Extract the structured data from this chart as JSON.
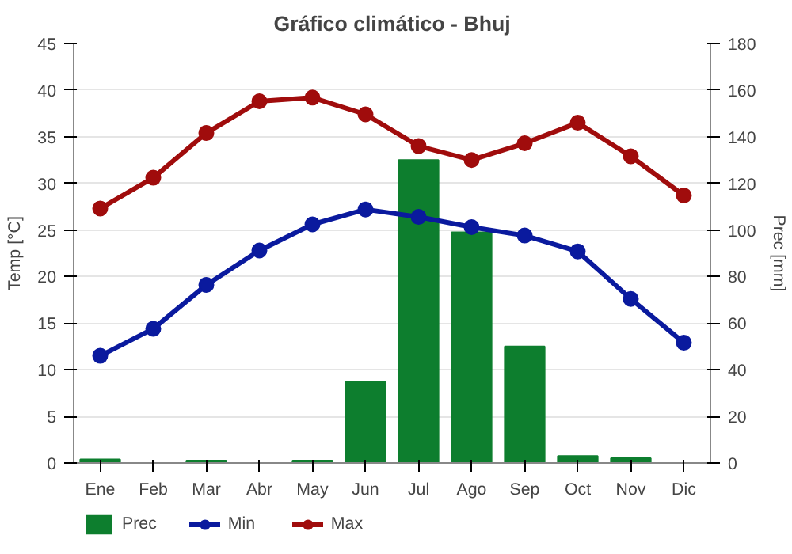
{
  "chart_data": {
    "type": "line",
    "title": "Gráfico climático - Bhuj",
    "ylabel": "Temp [°C]",
    "y2label": "Prec [mm]",
    "categories": [
      "Ene",
      "Feb",
      "Mar",
      "Abr",
      "May",
      "Jun",
      "Jul",
      "Ago",
      "Sep",
      "Oct",
      "Nov",
      "Dic"
    ],
    "series": [
      {
        "name": "Prec",
        "type": "bar",
        "axis": "y2",
        "color": "#0d7e2e",
        "values": [
          1.5,
          0,
          1,
          0,
          1,
          35,
          130,
          99,
          50,
          3,
          2,
          0
        ]
      },
      {
        "name": "Min",
        "color": "#0a1a9e",
        "values": [
          11.5,
          14.4,
          19.1,
          22.8,
          25.6,
          27.2,
          26.4,
          25.3,
          24.4,
          22.7,
          17.6,
          12.9
        ]
      },
      {
        "name": "Max",
        "color": "#a00c0c",
        "values": [
          27.3,
          30.6,
          35.4,
          38.8,
          39.2,
          37.4,
          34.0,
          32.5,
          34.3,
          36.5,
          32.9,
          28.7
        ]
      }
    ],
    "ylim": [
      0,
      45
    ],
    "yticks": [
      0,
      5,
      10,
      15,
      20,
      25,
      30,
      35,
      40,
      45
    ],
    "y2lim": [
      0,
      180
    ],
    "y2ticks": [
      0,
      20,
      40,
      60,
      80,
      100,
      120,
      140,
      160,
      180
    ],
    "grid": "y",
    "legend": "bottom",
    "marker": "circle",
    "line_style": "solid"
  }
}
